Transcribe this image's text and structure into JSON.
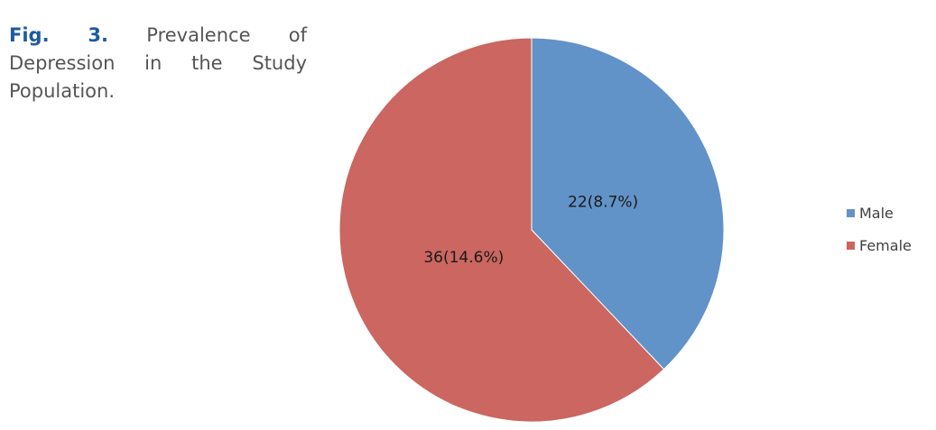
{
  "caption": {
    "label": "Fig. 3.",
    "text": "Prevalence of Depression in the Study Population."
  },
  "chart_data": {
    "type": "pie",
    "title": "",
    "legend_position": "right",
    "categories": [
      "Male",
      "Female"
    ],
    "values": [
      22,
      36
    ],
    "percentages": [
      8.7,
      14.6
    ],
    "labels": [
      "22(8.7%)",
      "36(14.6%)"
    ],
    "colors": [
      "#6293c8",
      "#cb6660"
    ]
  }
}
